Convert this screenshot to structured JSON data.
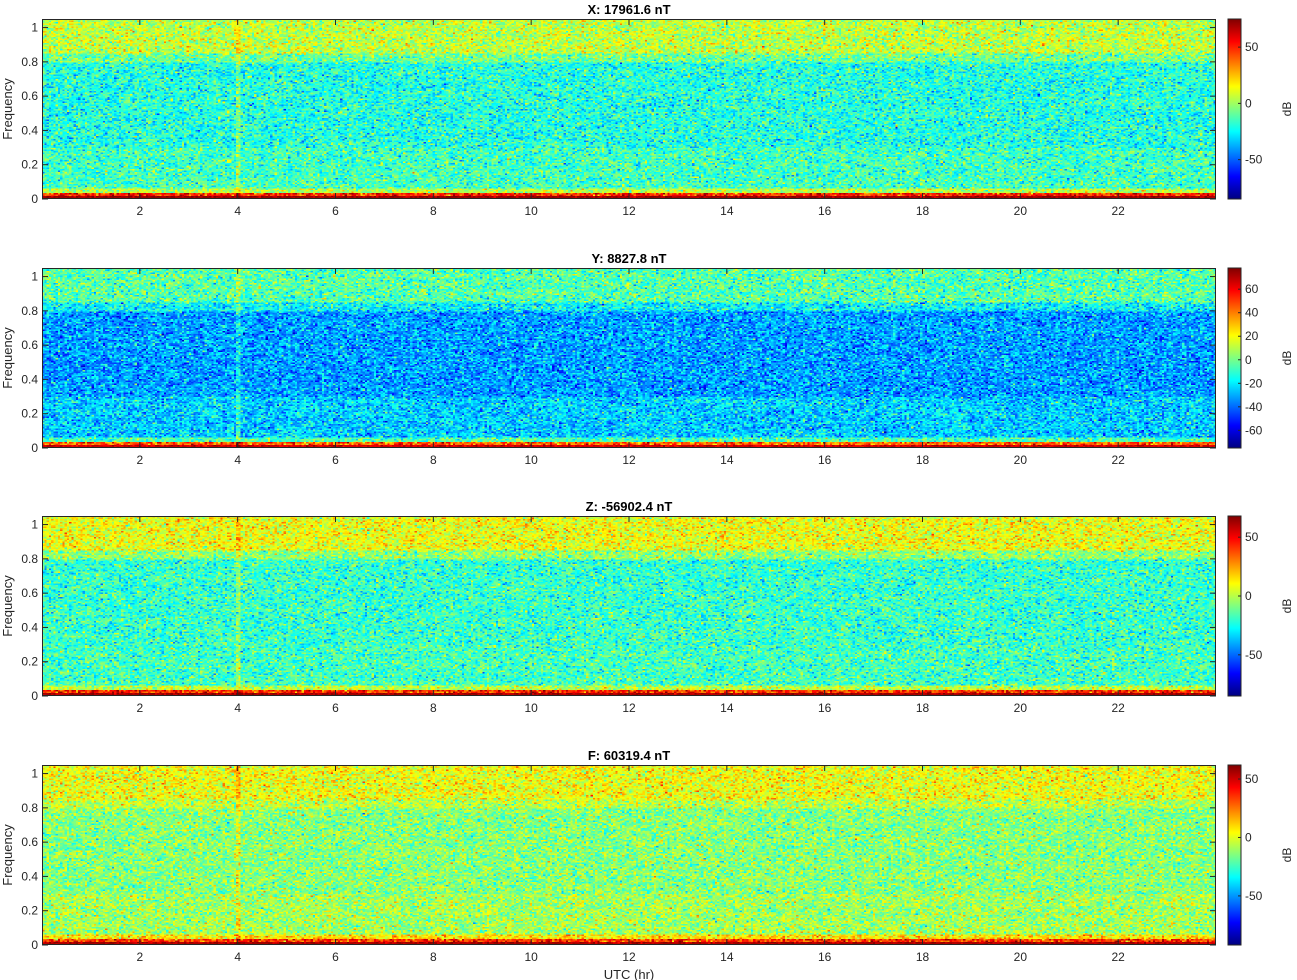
{
  "chart_data": [
    {
      "type": "heatmap",
      "title": "X: 17961.6 nT",
      "ylabel": "Frequency",
      "xlabel": "",
      "x_ticks": [
        "2",
        "4",
        "6",
        "8",
        "10",
        "12",
        "14",
        "16",
        "18",
        "20",
        "22"
      ],
      "y_ticks": [
        "0",
        "0.2",
        "0.4",
        "0.6",
        "0.8",
        "1"
      ],
      "xlim": [
        0,
        24
      ],
      "ylim": [
        0,
        1.05
      ],
      "colorbar": {
        "label": "dB",
        "ticks": [
          -50,
          0,
          50
        ],
        "tick_labels": [
          "-50",
          "0",
          "50"
        ],
        "range": [
          -85,
          75
        ]
      },
      "features": {
        "background_db": -15,
        "background_spread": 14,
        "high_band_db": 5,
        "low_band_db": 70,
        "midband_db": -20
      }
    },
    {
      "type": "heatmap",
      "title": "Y: 8827.8 nT",
      "ylabel": "Frequency",
      "xlabel": "",
      "x_ticks": [
        "2",
        "4",
        "6",
        "8",
        "10",
        "12",
        "14",
        "16",
        "18",
        "20",
        "22"
      ],
      "y_ticks": [
        "0",
        "0.2",
        "0.4",
        "0.6",
        "0.8",
        "1"
      ],
      "xlim": [
        0,
        24
      ],
      "ylim": [
        0,
        1.05
      ],
      "colorbar": {
        "label": "dB",
        "ticks": [
          -60,
          -40,
          -20,
          0,
          20,
          40,
          60
        ],
        "tick_labels": [
          "-60",
          "-40",
          "-20",
          "0",
          "20",
          "40",
          "60"
        ],
        "range": [
          -75,
          78
        ]
      },
      "features": {
        "background_db": -25,
        "background_spread": 14,
        "high_band_db": -5,
        "low_band_db": 65,
        "midband_db": -32
      }
    },
    {
      "type": "heatmap",
      "title": "Z: -56902.4 nT",
      "ylabel": "Frequency",
      "xlabel": "",
      "x_ticks": [
        "2",
        "4",
        "6",
        "8",
        "10",
        "12",
        "14",
        "16",
        "18",
        "20",
        "22"
      ],
      "y_ticks": [
        "0",
        "0.2",
        "0.4",
        "0.6",
        "0.8",
        "1"
      ],
      "xlim": [
        0,
        24
      ],
      "ylim": [
        0,
        1.05
      ],
      "colorbar": {
        "label": "dB",
        "ticks": [
          -50,
          0,
          50
        ],
        "tick_labels": [
          "-50",
          "0",
          "50"
        ],
        "range": [
          -85,
          68
        ]
      },
      "features": {
        "background_db": -18,
        "background_spread": 13,
        "high_band_db": 8,
        "low_band_db": 62,
        "midband_db": -20
      }
    },
    {
      "type": "heatmap",
      "title": "F: 60319.4 nT",
      "ylabel": "Frequency",
      "xlabel": "UTC (hr)",
      "x_ticks": [
        "2",
        "4",
        "6",
        "8",
        "10",
        "12",
        "14",
        "16",
        "18",
        "20",
        "22"
      ],
      "y_ticks": [
        "0",
        "0.2",
        "0.4",
        "0.6",
        "0.8",
        "1"
      ],
      "xlim": [
        0,
        24
      ],
      "ylim": [
        0,
        1.05
      ],
      "colorbar": {
        "label": "dB",
        "ticks": [
          -50,
          0,
          50
        ],
        "tick_labels": [
          "-50",
          "0",
          "50"
        ],
        "range": [
          -92,
          62
        ]
      },
      "features": {
        "background_db": -10,
        "background_spread": 13,
        "high_band_db": 2,
        "low_band_db": 55,
        "midband_db": -14
      }
    }
  ]
}
